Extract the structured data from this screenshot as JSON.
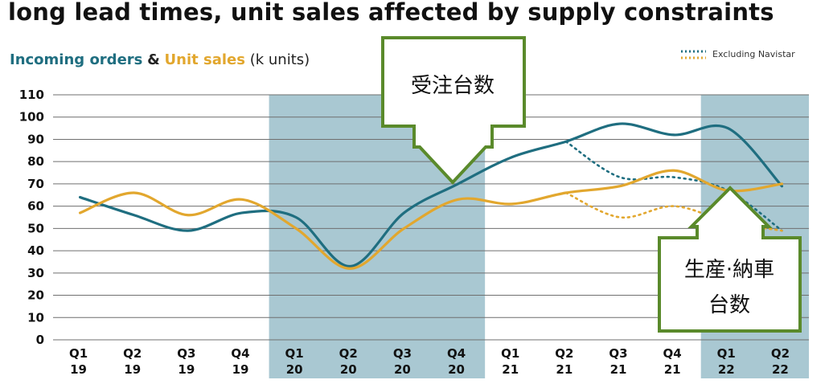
{
  "title": "long lead times, unit sales affected by supply constraints",
  "subtitle": {
    "series1": "Incoming orders",
    "amp": "&",
    "series2": "Unit sales",
    "unit": "(k units)"
  },
  "legend": {
    "excluding_label": "Excluding Navistar"
  },
  "callouts": {
    "orders": "受注台数",
    "sales_line1": "生産·納車",
    "sales_line2": "台数"
  },
  "colors": {
    "orders": "#1f6e80",
    "sales": "#e2a72e",
    "shade": "#a9c8d2",
    "callout_border": "#5a8a2b"
  },
  "chart_data": {
    "type": "line",
    "title": "long lead times, unit sales affected by supply constraints",
    "ylabel": "(k units)",
    "ylim": [
      0,
      110
    ],
    "yticks": [
      0,
      10,
      20,
      30,
      40,
      50,
      60,
      70,
      80,
      90,
      100,
      110
    ],
    "categories": [
      "Q1 19",
      "Q2 19",
      "Q3 19",
      "Q4 19",
      "Q1 20",
      "Q2 20",
      "Q3 20",
      "Q4 20",
      "Q1 21",
      "Q2 21",
      "Q3 21",
      "Q4 21",
      "Q1 22",
      "Q2 22"
    ],
    "category_labels": [
      [
        "Q1",
        "19"
      ],
      [
        "Q2",
        "19"
      ],
      [
        "Q3",
        "19"
      ],
      [
        "Q4",
        "19"
      ],
      [
        "Q1",
        "20"
      ],
      [
        "Q2",
        "20"
      ],
      [
        "Q3",
        "20"
      ],
      [
        "Q4",
        "20"
      ],
      [
        "Q1",
        "21"
      ],
      [
        "Q2",
        "21"
      ],
      [
        "Q3",
        "21"
      ],
      [
        "Q4",
        "21"
      ],
      [
        "Q1",
        "22"
      ],
      [
        "Q2",
        "22"
      ]
    ],
    "shaded_ranges": [
      [
        "Q1 20",
        "Q4 20"
      ],
      [
        "Q1 22",
        "Q2 22"
      ]
    ],
    "grid": true,
    "legend_position": "top-right",
    "series": [
      {
        "name": "Incoming orders",
        "style": "solid",
        "values": [
          64,
          56,
          49,
          57,
          55,
          33,
          57,
          70,
          82,
          89,
          97,
          92,
          95,
          69
        ]
      },
      {
        "name": "Unit sales",
        "style": "solid",
        "values": [
          57,
          66,
          56,
          63,
          50,
          32,
          50,
          63,
          61,
          66,
          69,
          76,
          67,
          70
        ]
      },
      {
        "name": "Incoming orders Excluding Navistar",
        "style": "dotted",
        "x": [
          "Q2 21",
          "Q3 21",
          "Q4 21",
          "Q1 22",
          "Q2 22"
        ],
        "values": [
          89,
          73,
          73,
          67,
          49
        ]
      },
      {
        "name": "Unit sales Excluding Navistar",
        "style": "dotted",
        "x": [
          "Q2 21",
          "Q3 21",
          "Q4 21",
          "Q1 22",
          "Q2 22"
        ],
        "values": [
          66,
          55,
          60,
          53,
          49
        ]
      }
    ]
  }
}
